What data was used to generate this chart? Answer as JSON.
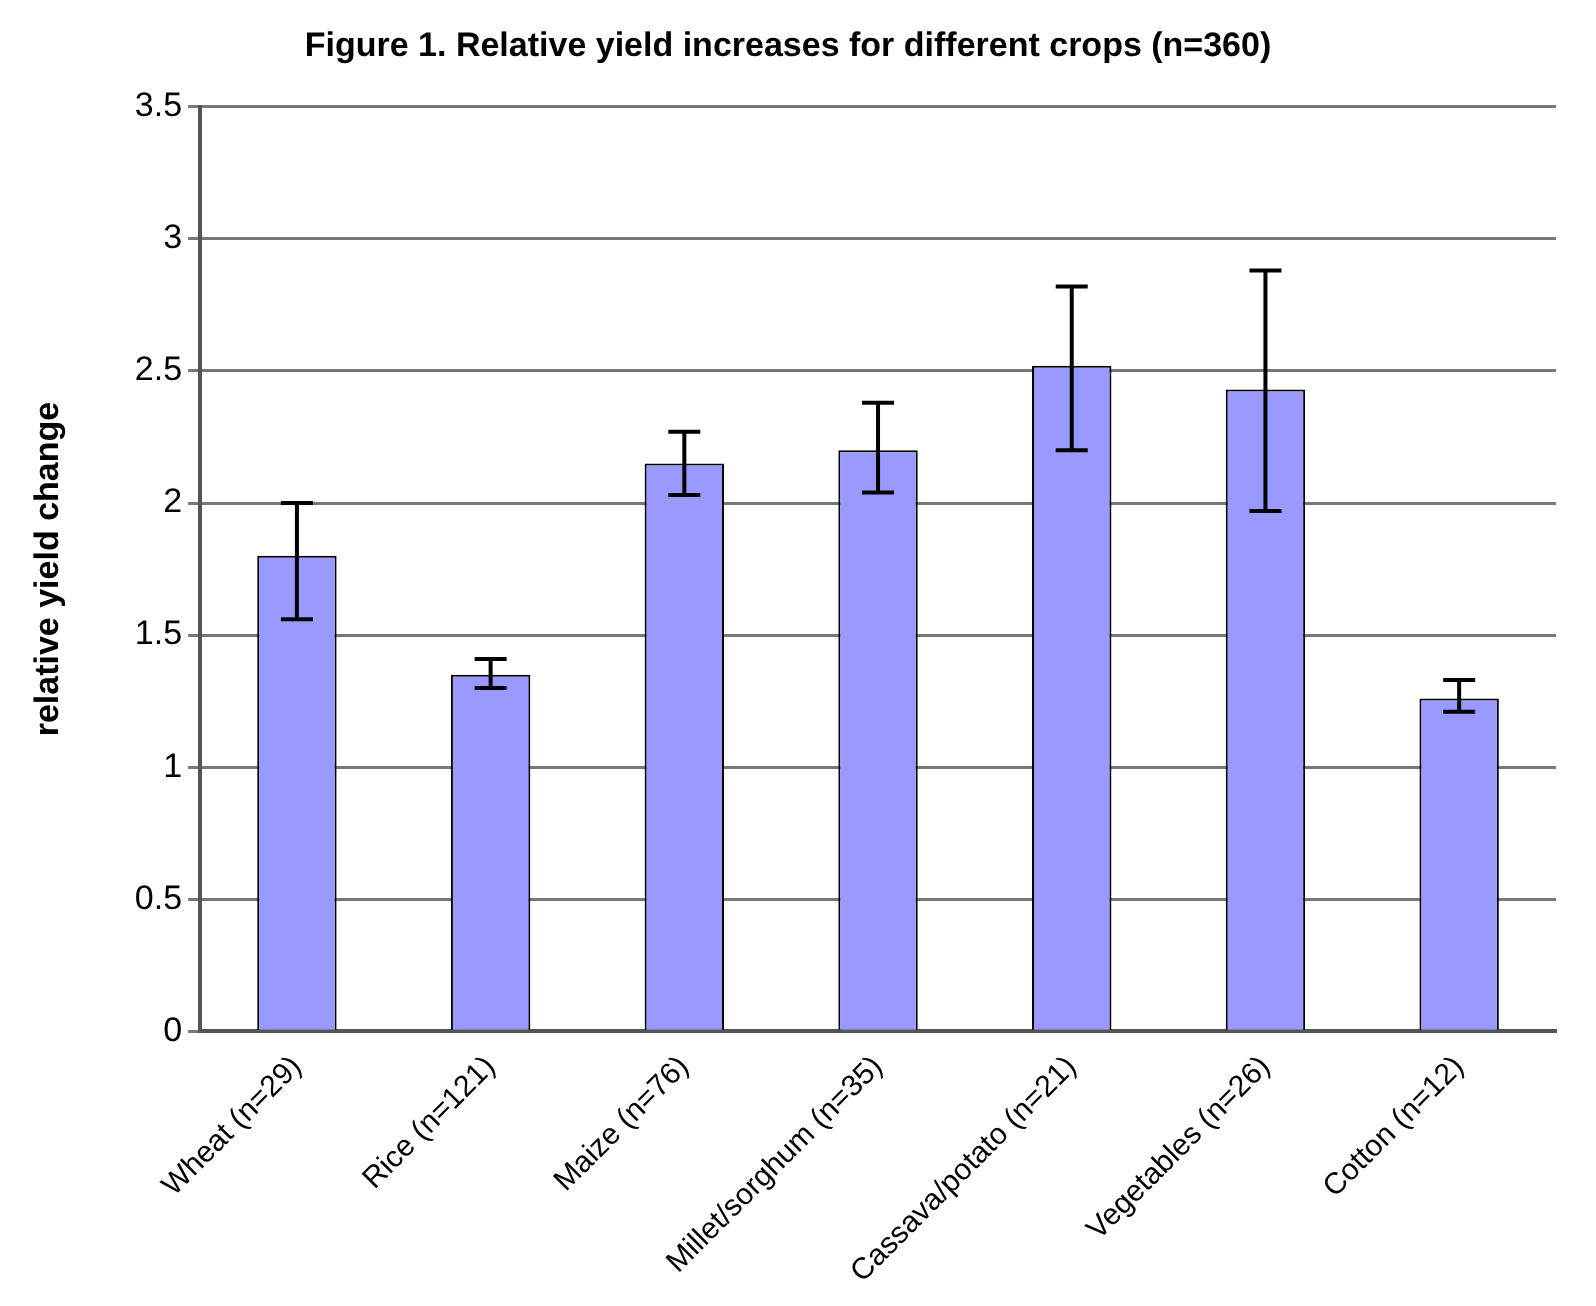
{
  "chart_data": {
    "type": "bar",
    "title": "Figure 1. Relative yield increases for different crops (n=360)",
    "ylabel": "relative yield change",
    "categories": [
      "Wheat (n=29)",
      "Rice (n=121)",
      "Maize (n=76)",
      "Millet/sorghum (n=35)",
      "Cassava/potato (n=21)",
      "Vegetables (n=26)",
      "Cotton (n=12)"
    ],
    "values": [
      1.8,
      1.35,
      2.15,
      2.2,
      2.52,
      2.43,
      1.26
    ],
    "errors": [
      [
        1.56,
        2.0
      ],
      [
        1.3,
        1.41
      ],
      [
        2.03,
        2.27
      ],
      [
        2.04,
        2.38
      ],
      [
        2.2,
        2.82
      ],
      [
        1.97,
        2.88
      ],
      [
        1.21,
        1.33
      ]
    ],
    "color": "#9999ff",
    "ylim": [
      0,
      3.5
    ],
    "yticks": [
      0,
      0.5,
      1,
      1.5,
      2,
      2.5,
      3,
      3.5
    ],
    "grid": "y",
    "legend": false
  }
}
